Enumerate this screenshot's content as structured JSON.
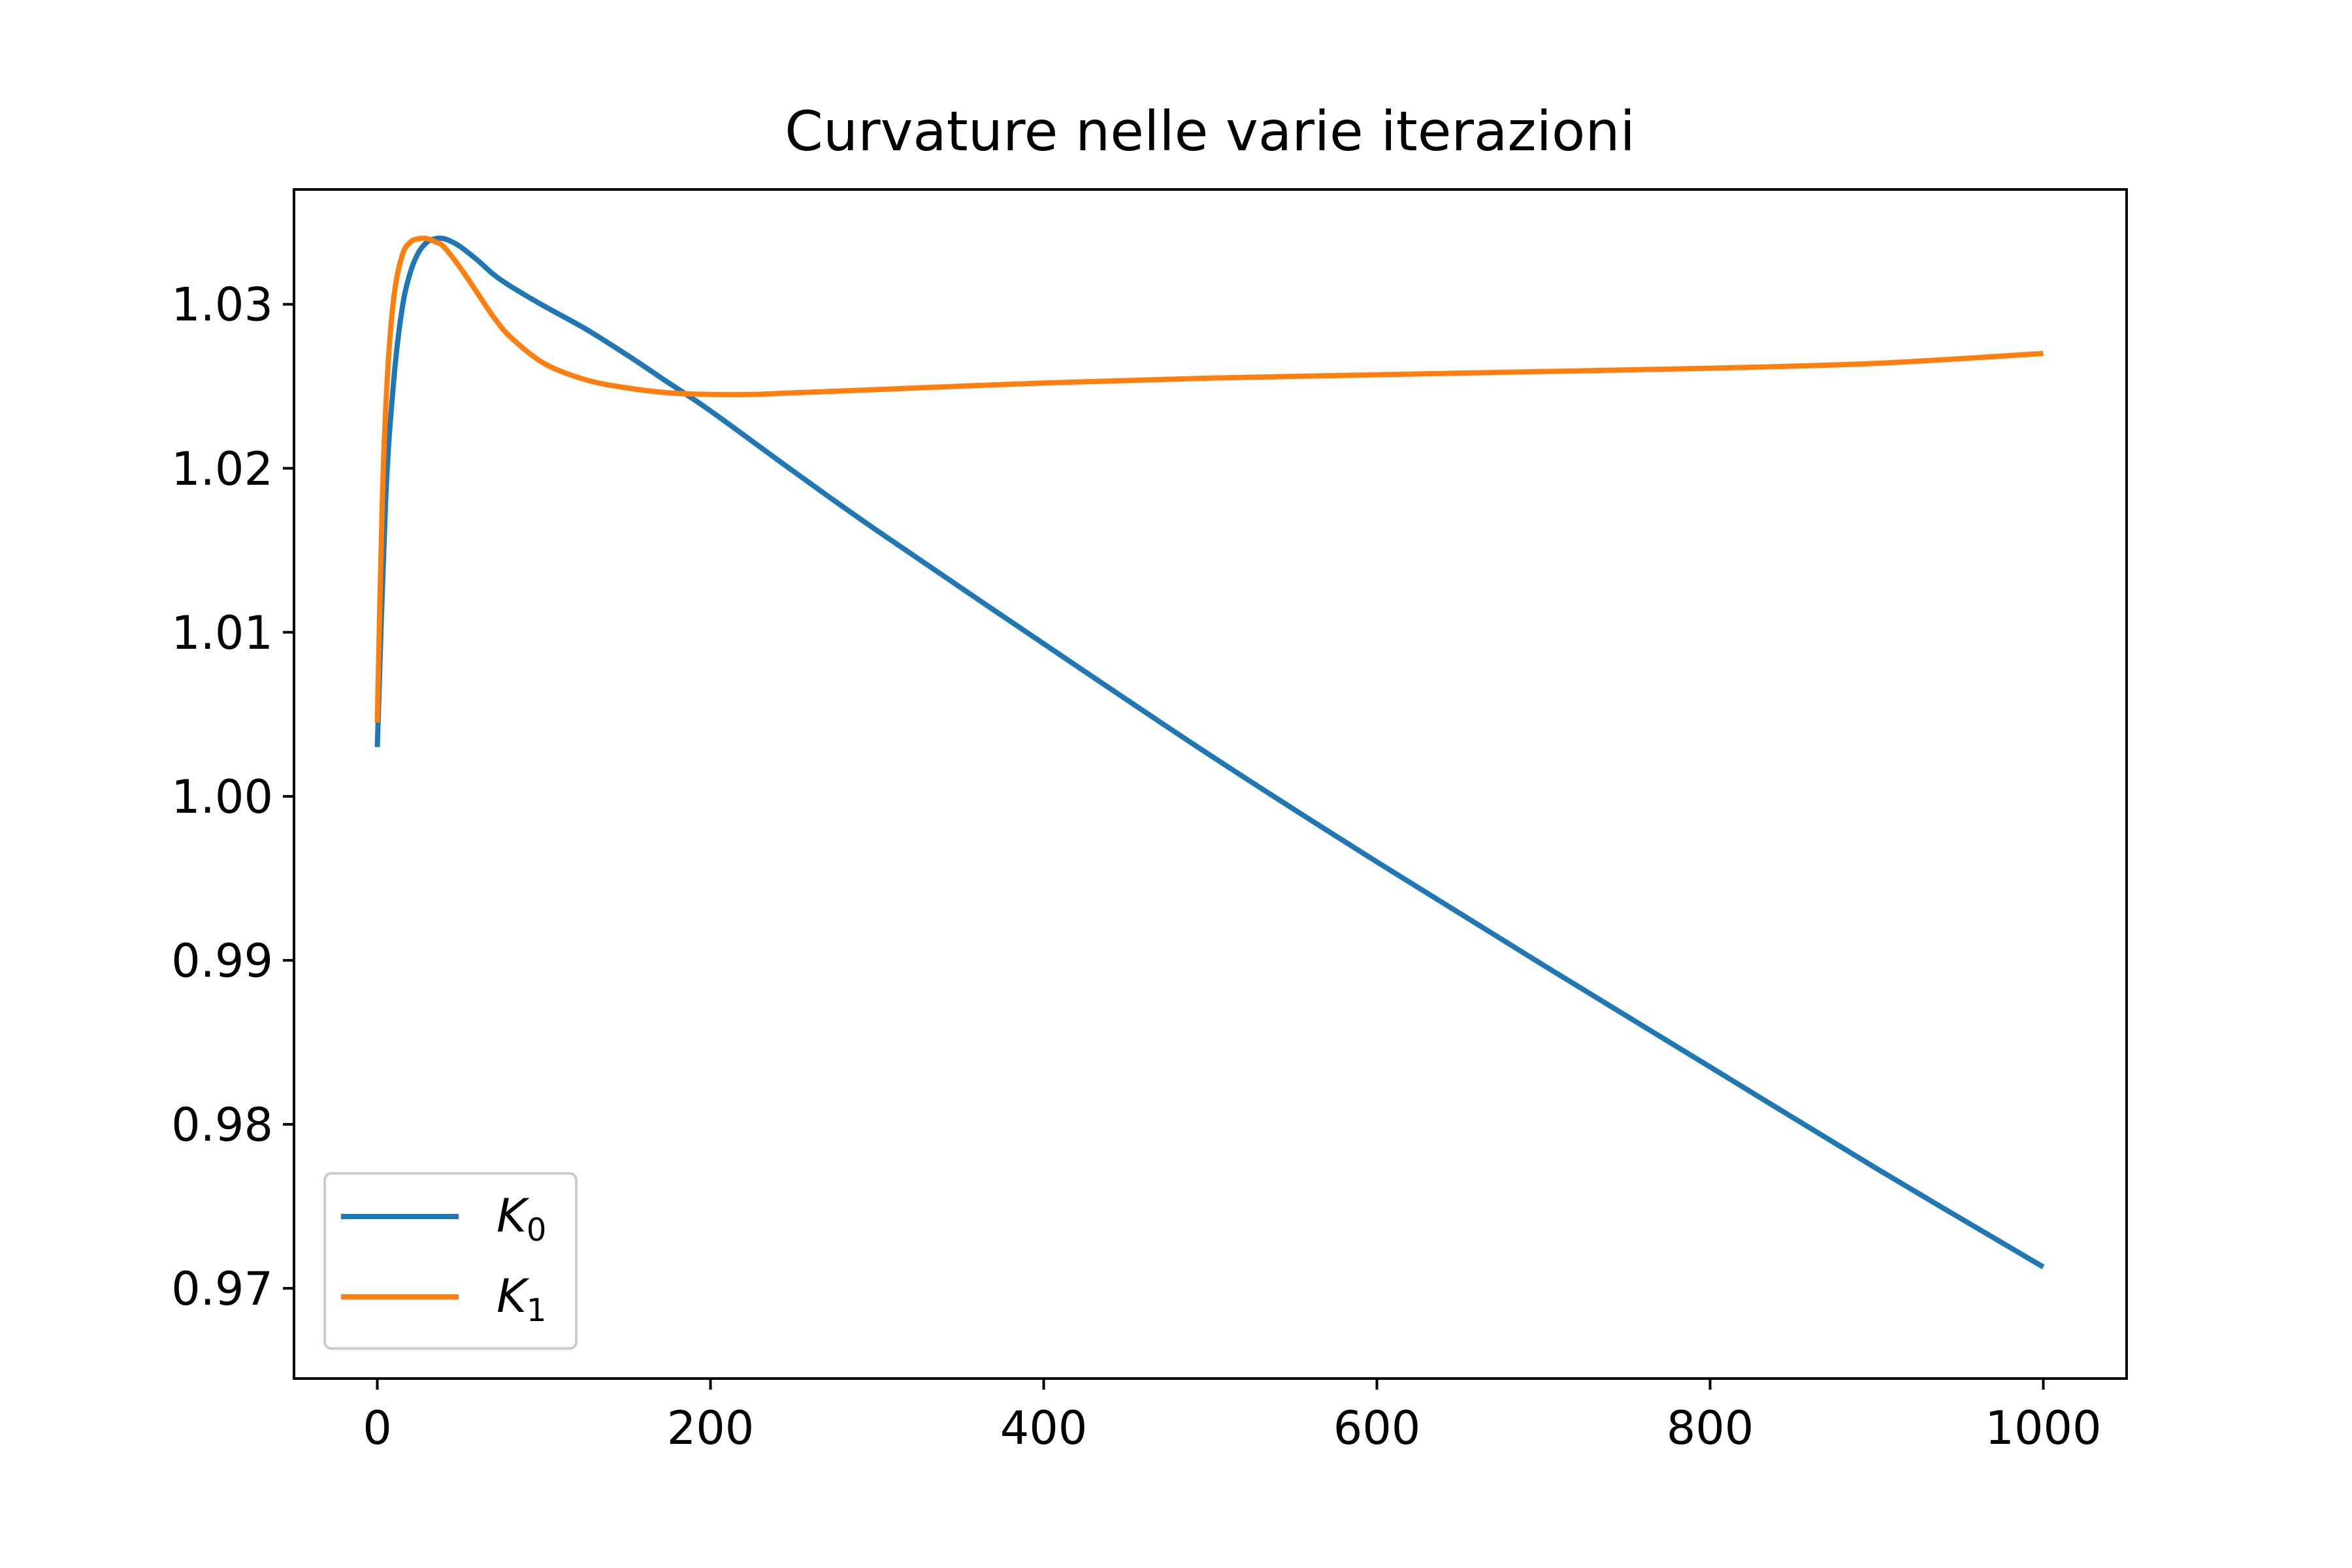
{
  "chart_data": {
    "type": "line",
    "title": "Curvature nelle varie iterazioni",
    "xlabel": "",
    "ylabel": "",
    "xlim": [
      -50,
      1050
    ],
    "ylim": [
      0.9645,
      1.037
    ],
    "x_ticks": [
      0,
      200,
      400,
      600,
      800,
      1000
    ],
    "x_tick_labels": [
      "0",
      "200",
      "400",
      "600",
      "800",
      "1000"
    ],
    "y_ticks": [
      0.97,
      0.98,
      0.99,
      1.0,
      1.01,
      1.02,
      1.03
    ],
    "y_tick_labels": [
      "0.97",
      "0.98",
      "0.99",
      "1.00",
      "1.01",
      "1.02",
      "1.03"
    ],
    "grid": false,
    "legend_position": "lower-left",
    "series": [
      {
        "name": "K",
        "name_subscript": "0",
        "color": "#1f77b4",
        "x": [
          0,
          5,
          10,
          15,
          20,
          25,
          30,
          35,
          40,
          45,
          50,
          60,
          70,
          80,
          100,
          125,
          150,
          175,
          200,
          250,
          300,
          400,
          500,
          600,
          700,
          800,
          900,
          1000
        ],
        "y": [
          1.003,
          1.018,
          1.0255,
          1.0298,
          1.032,
          1.0332,
          1.0338,
          1.034,
          1.034,
          1.0338,
          1.0335,
          1.0327,
          1.0318,
          1.0311,
          1.0299,
          1.0285,
          1.0269,
          1.0252,
          1.0235,
          1.0198,
          1.0162,
          1.0093,
          1.0025,
          0.996,
          0.9897,
          0.9835,
          0.9773,
          0.9713
        ]
      },
      {
        "name": "K",
        "name_subscript": "1",
        "color": "#ff7f0e",
        "x": [
          0,
          3,
          6,
          10,
          15,
          20,
          25,
          30,
          35,
          40,
          50,
          60,
          70,
          80,
          100,
          125,
          150,
          175,
          200,
          225,
          250,
          300,
          400,
          500,
          600,
          700,
          800,
          900,
          1000
        ],
        "y": [
          1.0045,
          1.018,
          1.0255,
          1.0305,
          1.033,
          1.0338,
          1.034,
          1.034,
          1.0338,
          1.0335,
          1.0322,
          1.0307,
          1.0292,
          1.028,
          1.0264,
          1.0254,
          1.0249,
          1.0246,
          1.0245,
          1.0245,
          1.0246,
          1.0248,
          1.0252,
          1.0255,
          1.0257,
          1.0259,
          1.0261,
          1.0264,
          1.027
        ]
      }
    ]
  }
}
